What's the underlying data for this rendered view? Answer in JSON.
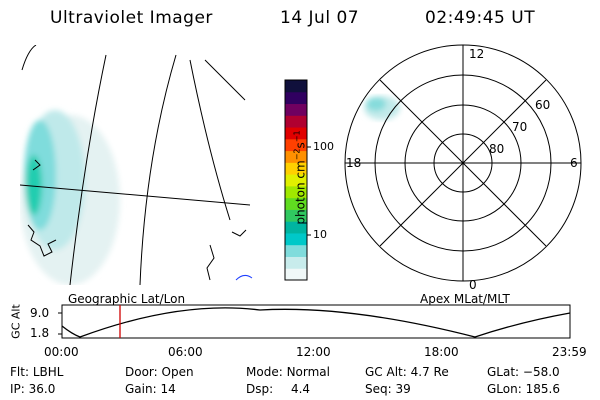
{
  "header": {
    "instrument": "Ultraviolet Imager",
    "date": "14 Jul 07",
    "time": "02:49:45 UT"
  },
  "colorbar": {
    "unit_label": "photon cm",
    "unit_exp1": "−2",
    "unit_s": "s",
    "unit_exp2": "−1",
    "tick_100": "100",
    "tick_10": "10",
    "colors": [
      "#f0f8f8",
      "#c8ecec",
      "#80dcdc",
      "#00c8c8",
      "#00b4a0",
      "#30c860",
      "#60dc20",
      "#a0e800",
      "#e0f000",
      "#ffd000",
      "#ff9000",
      "#ff4000",
      "#e00000",
      "#b00030",
      "#700060",
      "#300060",
      "#10103c"
    ]
  },
  "polar": {
    "labels": {
      "top": "12",
      "left": "18",
      "right": "6",
      "bottom": "0"
    },
    "rings": [
      "60",
      "70",
      "80"
    ]
  },
  "map_label": "Geographic Lat/Lon",
  "polar_label": "Apex MLat/MLT",
  "timeline": {
    "ylabel": "GC Alt",
    "y_hi": "9.0",
    "y_lo": "1.8",
    "times": [
      "00:00",
      "06:00",
      "12:00",
      "18:00",
      "23:59"
    ],
    "marker_color": "#d00000"
  },
  "footer": {
    "row1": [
      {
        "k": "Flt:",
        "v": "LBHL"
      },
      {
        "k": "Door:",
        "v": "Open"
      },
      {
        "k": "Mode:",
        "v": "Normal"
      },
      {
        "k": "GC Alt:",
        "v": "4.7 Re"
      },
      {
        "k": "GLat:",
        "v": "−58.0"
      }
    ],
    "row2": [
      {
        "k": "IP:",
        "v": "36.0"
      },
      {
        "k": "Gain:",
        "v": "14"
      },
      {
        "k": "Dsp:",
        "v": "4.4"
      },
      {
        "k": "Seq:",
        "v": "39"
      },
      {
        "k": "GLon:",
        "v": "185.6"
      }
    ]
  }
}
